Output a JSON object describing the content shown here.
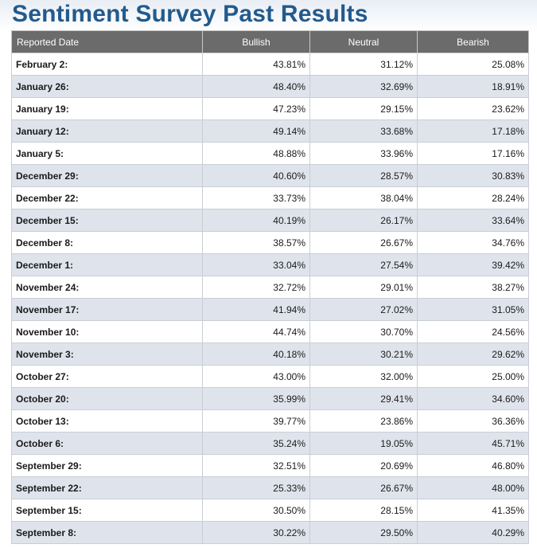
{
  "page": {
    "title": "Sentiment Survey Past Results"
  },
  "table": {
    "headers": [
      "Reported Date",
      "Bullish",
      "Neutral",
      "Bearish"
    ],
    "rows": [
      {
        "date": "February 2:",
        "bullish": "43.81%",
        "neutral": "31.12%",
        "bearish": "25.08%"
      },
      {
        "date": "January 26:",
        "bullish": "48.40%",
        "neutral": "32.69%",
        "bearish": "18.91%"
      },
      {
        "date": "January 19:",
        "bullish": "47.23%",
        "neutral": "29.15%",
        "bearish": "23.62%"
      },
      {
        "date": "January 12:",
        "bullish": "49.14%",
        "neutral": "33.68%",
        "bearish": "17.18%"
      },
      {
        "date": "January 5:",
        "bullish": "48.88%",
        "neutral": "33.96%",
        "bearish": "17.16%"
      },
      {
        "date": "December 29:",
        "bullish": "40.60%",
        "neutral": "28.57%",
        "bearish": "30.83%"
      },
      {
        "date": "December 22:",
        "bullish": "33.73%",
        "neutral": "38.04%",
        "bearish": "28.24%"
      },
      {
        "date": "December 15:",
        "bullish": "40.19%",
        "neutral": "26.17%",
        "bearish": "33.64%"
      },
      {
        "date": "December 8:",
        "bullish": "38.57%",
        "neutral": "26.67%",
        "bearish": "34.76%"
      },
      {
        "date": "December 1:",
        "bullish": "33.04%",
        "neutral": "27.54%",
        "bearish": "39.42%"
      },
      {
        "date": "November 24:",
        "bullish": "32.72%",
        "neutral": "29.01%",
        "bearish": "38.27%"
      },
      {
        "date": "November 17:",
        "bullish": "41.94%",
        "neutral": "27.02%",
        "bearish": "31.05%"
      },
      {
        "date": "November 10:",
        "bullish": "44.74%",
        "neutral": "30.70%",
        "bearish": "24.56%"
      },
      {
        "date": "November 3:",
        "bullish": "40.18%",
        "neutral": "30.21%",
        "bearish": "29.62%"
      },
      {
        "date": "October 27:",
        "bullish": "43.00%",
        "neutral": "32.00%",
        "bearish": "25.00%"
      },
      {
        "date": "October 20:",
        "bullish": "35.99%",
        "neutral": "29.41%",
        "bearish": "34.60%"
      },
      {
        "date": "October 13:",
        "bullish": "39.77%",
        "neutral": "23.86%",
        "bearish": "36.36%"
      },
      {
        "date": "October 6:",
        "bullish": "35.24%",
        "neutral": "19.05%",
        "bearish": "45.71%"
      },
      {
        "date": "September 29:",
        "bullish": "32.51%",
        "neutral": "20.69%",
        "bearish": "46.80%"
      },
      {
        "date": "September 22:",
        "bullish": "25.33%",
        "neutral": "26.67%",
        "bearish": "48.00%"
      },
      {
        "date": "September 15:",
        "bullish": "30.50%",
        "neutral": "28.15%",
        "bearish": "41.35%"
      },
      {
        "date": "September 8:",
        "bullish": "30.22%",
        "neutral": "29.50%",
        "bearish": "40.29%"
      }
    ]
  },
  "colors": {
    "title": "#235a8c",
    "header_bg": "#6b6b6b",
    "header_text": "#ffffff",
    "row_alt_bg": "#dfe4ec",
    "row_bg": "#ffffff"
  }
}
